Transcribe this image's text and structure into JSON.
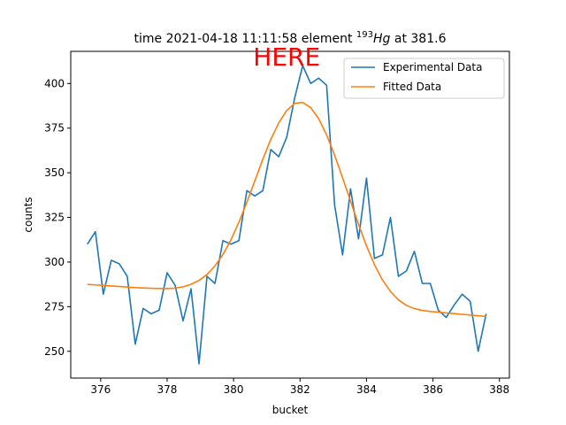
{
  "chart_data": {
    "type": "line",
    "title_prefix": "time 2021-04-18 11:11:58 element ",
    "title_sup": "193",
    "title_elem": "Hg",
    "title_suffix": " at 381.6",
    "xlabel": "bucket",
    "ylabel": "counts",
    "xlim": [
      375.1,
      388.3
    ],
    "ylim": [
      235,
      418
    ],
    "xticks": [
      376,
      378,
      380,
      382,
      384,
      386,
      388
    ],
    "yticks": [
      250,
      275,
      300,
      325,
      350,
      375,
      400
    ],
    "legend_position": "upper right",
    "annotation": {
      "text": "HERE",
      "color": "#ff0000",
      "x": 381.6
    },
    "series": [
      {
        "name": "Experimental Data",
        "color": "#1f77b4",
        "x": [
          375.6,
          375.84,
          376.08,
          376.32,
          376.56,
          376.8,
          377.04,
          377.28,
          377.52,
          377.76,
          378.0,
          378.24,
          378.48,
          378.72,
          378.96,
          379.2,
          379.44,
          379.68,
          379.92,
          380.16,
          380.4,
          380.64,
          380.88,
          381.12,
          381.36,
          381.6,
          381.84,
          382.08,
          382.32,
          382.56,
          382.8,
          383.04,
          383.28,
          383.52,
          383.76,
          384.0,
          384.24,
          384.48,
          384.72,
          384.96,
          385.2,
          385.44,
          385.68,
          385.92,
          386.16,
          386.4,
          386.64,
          386.88,
          387.12,
          387.36,
          387.6
        ],
        "y": [
          310,
          317,
          282,
          301,
          299,
          292,
          254,
          274,
          271,
          273,
          294,
          287,
          267,
          285,
          243,
          292,
          288,
          312,
          310,
          312,
          340,
          337,
          340,
          363,
          359,
          370,
          392,
          410,
          400,
          403,
          399,
          332,
          304,
          341,
          313,
          347,
          302,
          304,
          325,
          292,
          295,
          306,
          288,
          288,
          273,
          269,
          276,
          282,
          278,
          250,
          271
        ]
      },
      {
        "name": "Fitted Data",
        "color": "#ff7f0e",
        "x": [
          375.6,
          375.84,
          376.08,
          376.32,
          376.56,
          376.8,
          377.04,
          377.28,
          377.52,
          377.76,
          378.0,
          378.24,
          378.48,
          378.72,
          378.96,
          379.2,
          379.44,
          379.68,
          379.92,
          380.16,
          380.4,
          380.64,
          380.88,
          381.12,
          381.36,
          381.6,
          381.84,
          382.08,
          382.32,
          382.56,
          382.8,
          383.04,
          383.28,
          383.52,
          383.76,
          384.0,
          384.24,
          384.48,
          384.72,
          384.96,
          385.2,
          385.44,
          385.68,
          385.92,
          386.16,
          386.4,
          386.64,
          386.88,
          387.12,
          387.36,
          387.6
        ],
        "y": [
          287.5,
          287.2,
          286.9,
          286.6,
          286.3,
          286.0,
          285.7,
          285.5,
          285.3,
          285.2,
          285.1,
          285.4,
          286.1,
          287.5,
          289.7,
          293.0,
          297.8,
          304.2,
          312.4,
          322.3,
          333.5,
          345.5,
          357.6,
          368.7,
          378.0,
          384.9,
          388.9,
          389.4,
          386.5,
          380.3,
          371.2,
          359.9,
          347.2,
          334.0,
          321.1,
          309.0,
          298.5,
          290.0,
          283.5,
          278.8,
          275.7,
          273.9,
          272.9,
          272.3,
          271.9,
          271.5,
          271.1,
          270.7,
          270.3,
          269.9,
          269.5
        ]
      }
    ]
  }
}
